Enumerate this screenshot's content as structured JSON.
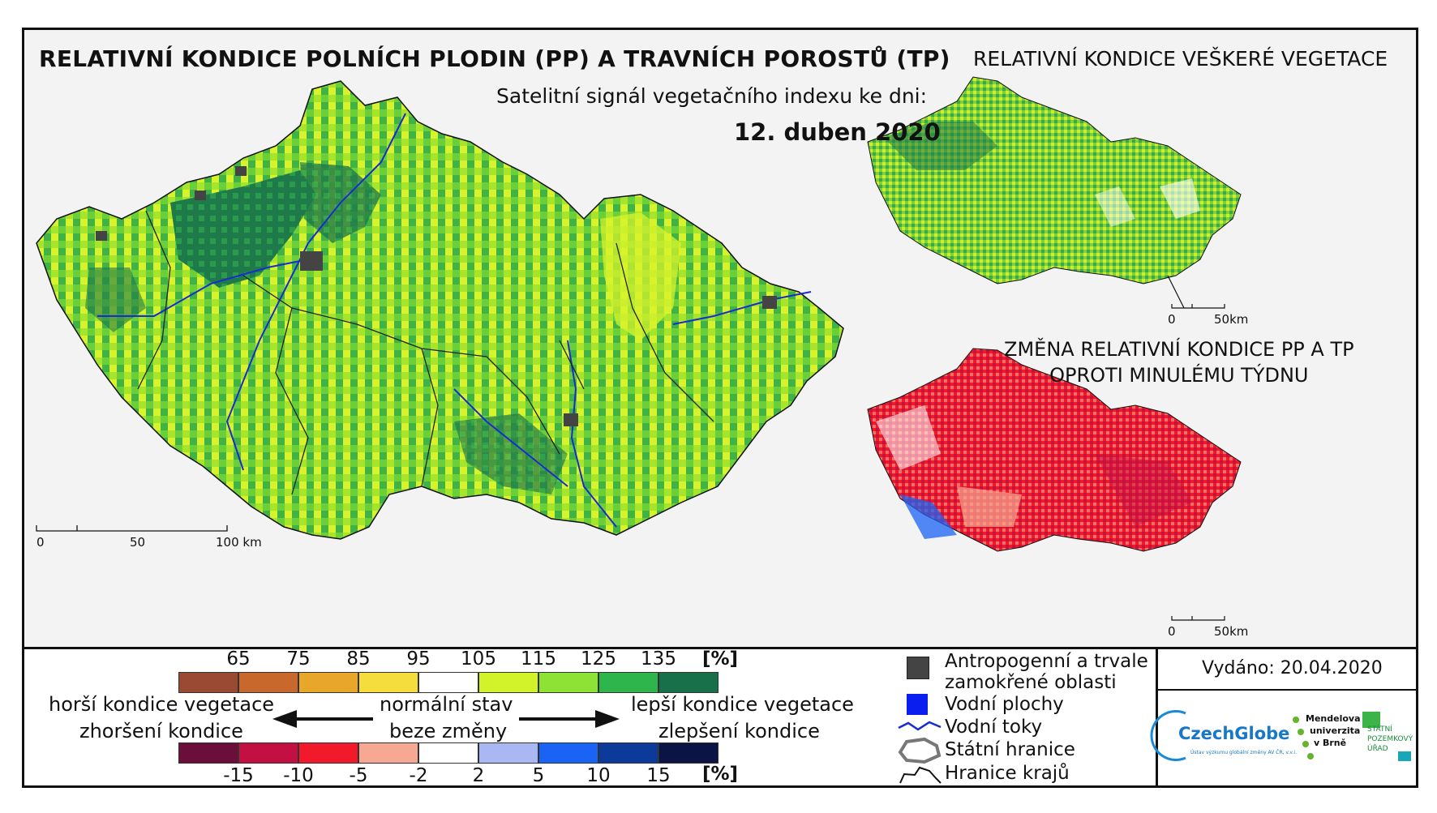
{
  "title_main": "RELATIVNÍ KONDICE POLNÍCH PLODIN (PP) A TRAVNÍCH POROSTŮ (TP)",
  "title_vegetation": "RELATIVNÍ KONDICE VEŠKERÉ VEGETACE",
  "subtitle": "Satelitní signál vegetačního indexu ke dni:",
  "date": "12. duben 2020",
  "title_change_line1": "ZMĚNA RELATIVNÍ KONDICE PP A TP",
  "title_change_line2": "OPROTI MINULÉMU TÝDNU",
  "main_scale": {
    "tick0": "0",
    "tick1": "50",
    "tick2": "100 km"
  },
  "small_scale_top": {
    "tick0": "0",
    "tick1": "50km"
  },
  "small_scale_bottom": {
    "tick0": "0",
    "tick1": "50km"
  },
  "legend_condition": {
    "unit": "[%]",
    "ticks": [
      "65",
      "75",
      "85",
      "95",
      "105",
      "115",
      "125",
      "135"
    ],
    "colors": [
      "#9a4a33",
      "#c8682c",
      "#e8a62a",
      "#f6dd3e",
      "#ffffff",
      "#d2f22a",
      "#8ee236",
      "#2eb54c",
      "#17704a"
    ]
  },
  "legend_change": {
    "unit": "[%]",
    "ticks": [
      "-15",
      "-10",
      "-5",
      "-2",
      "2",
      "5",
      "10",
      "15"
    ],
    "colors": [
      "#6b0f3a",
      "#c21042",
      "#f2192a",
      "#f6a893",
      "#ffffff",
      "#a9b8f2",
      "#1b63f5",
      "#0b3a9a",
      "#0a1445"
    ]
  },
  "arrow_labels": {
    "worse_condition": "horší kondice vegetace",
    "worse_change": "zhoršení kondice",
    "normal_state": "normální stav",
    "no_change": "beze změny",
    "better_condition": "lepší kondice vegetace",
    "better_change": "zlepšení kondice"
  },
  "symbols": {
    "anthropogenic_line1": "Antropogenní a trvale",
    "anthropogenic_line2": "zamokřené oblasti",
    "water_bodies": "Vodní plochy",
    "water_streams": "Vodní toky",
    "state_border": "Státní hranice",
    "region_border": "Hranice krajů"
  },
  "issued": "Vydáno: 20.04.2020",
  "logos": {
    "czechglobe": "CzechGlobe",
    "czechglobe_sub": "Ústav výzkumu globální změny AV ČR, v.v.i.",
    "mendel_1": "Mendelova",
    "mendel_2": "univerzita",
    "mendel_3": "v Brně",
    "spu_1": "STÁTNÍ",
    "spu_2": "POZEMKOVÝ",
    "spu_3": "ÚŘAD"
  }
}
